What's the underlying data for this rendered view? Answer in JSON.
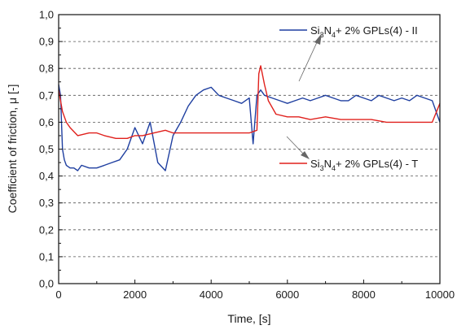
{
  "chart_data": {
    "type": "line",
    "title": "",
    "xlabel": "Time,  [s]",
    "ylabel": "Coefficient of friction, μ [-]",
    "xlim": [
      0,
      10000
    ],
    "ylim": [
      0.0,
      1.0
    ],
    "x_ticks": [
      "0",
      "2000",
      "4000",
      "6000",
      "8000",
      "10000"
    ],
    "y_ticks": [
      "0,0",
      "0,1",
      "0,2",
      "0,3",
      "0,4",
      "0,5",
      "0,6",
      "0,7",
      "0,8",
      "0,9",
      "1,0"
    ],
    "grid": "horizontal dashed",
    "legend_placement": "inline annotations with arrows",
    "series": [
      {
        "name": "Si3N4+ 2% GPLs(4) - II",
        "label_main": "Si",
        "label_sub1": "3",
        "label_mid": "N",
        "label_sub2": "4",
        "label_rest": "+ 2% GPLs(4) - II",
        "color": "#1f3fa0",
        "x": [
          0,
          50,
          100,
          150,
          200,
          300,
          400,
          500,
          600,
          800,
          1000,
          1200,
          1400,
          1600,
          1800,
          2000,
          2200,
          2400,
          2600,
          2800,
          3000,
          3200,
          3400,
          3600,
          3800,
          4000,
          4200,
          4400,
          4600,
          4800,
          5000,
          5100,
          5200,
          5300,
          5400,
          5600,
          5800,
          6000,
          6200,
          6400,
          6600,
          6800,
          7000,
          7200,
          7400,
          7600,
          7800,
          8000,
          8200,
          8400,
          8600,
          8800,
          9000,
          9200,
          9400,
          9600,
          9800,
          10000
        ],
        "values": [
          0.74,
          0.7,
          0.5,
          0.46,
          0.44,
          0.43,
          0.43,
          0.42,
          0.44,
          0.43,
          0.43,
          0.44,
          0.45,
          0.46,
          0.5,
          0.58,
          0.52,
          0.6,
          0.45,
          0.42,
          0.55,
          0.6,
          0.66,
          0.7,
          0.72,
          0.73,
          0.7,
          0.69,
          0.68,
          0.67,
          0.69,
          0.52,
          0.7,
          0.72,
          0.7,
          0.69,
          0.68,
          0.67,
          0.68,
          0.69,
          0.68,
          0.69,
          0.7,
          0.69,
          0.68,
          0.68,
          0.7,
          0.69,
          0.68,
          0.7,
          0.69,
          0.68,
          0.69,
          0.68,
          0.7,
          0.69,
          0.68,
          0.6
        ]
      },
      {
        "name": "Si3N4+ 2% GPLs(4) - T",
        "label_main": "Si",
        "label_sub1": "3",
        "label_mid": "N",
        "label_sub2": "4",
        "label_rest": "+ 2% GPLs(4) - T",
        "color": "#e0201c",
        "x": [
          0,
          50,
          100,
          200,
          300,
          500,
          800,
          1000,
          1200,
          1500,
          1800,
          2000,
          2200,
          2500,
          2800,
          3000,
          3300,
          3600,
          4000,
          4300,
          4600,
          5000,
          5200,
          5250,
          5300,
          5400,
          5500,
          5700,
          6000,
          6300,
          6600,
          7000,
          7400,
          7800,
          8200,
          8600,
          9000,
          9400,
          9800,
          10000
        ],
        "values": [
          0.72,
          0.68,
          0.64,
          0.6,
          0.58,
          0.55,
          0.56,
          0.56,
          0.55,
          0.54,
          0.54,
          0.55,
          0.55,
          0.56,
          0.57,
          0.56,
          0.56,
          0.56,
          0.56,
          0.56,
          0.56,
          0.56,
          0.57,
          0.78,
          0.81,
          0.74,
          0.68,
          0.63,
          0.62,
          0.62,
          0.61,
          0.62,
          0.61,
          0.61,
          0.61,
          0.6,
          0.6,
          0.6,
          0.6,
          0.67
        ]
      }
    ]
  }
}
